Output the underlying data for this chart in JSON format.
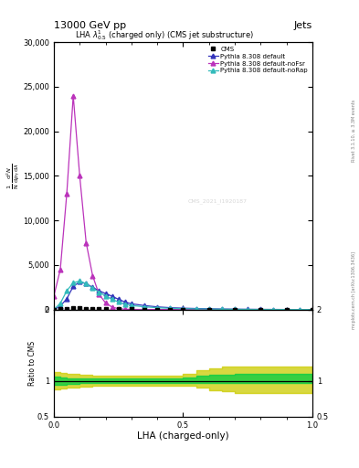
{
  "title": "13000 GeV pp",
  "title_right": "Jets",
  "plot_title": "LHA $\\lambda^{1}_{0.5}$ (charged only) (CMS jet substructure)",
  "xlabel": "LHA (charged-only)",
  "ylabel_ratio": "Ratio to CMS",
  "watermark": "CMS_2021_I1920187",
  "right_label": "mcplots.cern.ch [arXiv:1306.3436]",
  "rivet_label": "Rivet 3.1.10, ≥ 3.3M events",
  "xlim": [
    0,
    1
  ],
  "main_ylim": [
    0,
    30000
  ],
  "ratio_ylim": [
    0.5,
    2.0
  ],
  "cms_x": [
    0.0,
    0.025,
    0.05,
    0.075,
    0.1,
    0.125,
    0.15,
    0.175,
    0.2,
    0.25,
    0.3,
    0.35,
    0.4,
    0.45,
    0.5,
    0.6,
    0.7,
    0.8,
    0.9,
    1.0
  ],
  "cms_y": [
    0,
    50,
    100,
    150,
    120,
    90,
    70,
    55,
    45,
    30,
    20,
    14,
    10,
    7,
    5,
    3,
    2,
    1,
    0,
    0
  ],
  "pythia_default_x": [
    0.0,
    0.025,
    0.05,
    0.075,
    0.1,
    0.125,
    0.15,
    0.175,
    0.2,
    0.225,
    0.25,
    0.275,
    0.3,
    0.35,
    0.4,
    0.45,
    0.5,
    0.55,
    0.6,
    0.65,
    0.7,
    0.75,
    0.8,
    0.85,
    0.9,
    0.95,
    1.0
  ],
  "pythia_default_y": [
    0,
    400,
    1200,
    2600,
    3100,
    2900,
    2500,
    2100,
    1800,
    1500,
    1150,
    850,
    650,
    450,
    300,
    210,
    155,
    115,
    85,
    60,
    42,
    28,
    18,
    11,
    6,
    2,
    0
  ],
  "pythia_nofsr_x": [
    0.0,
    0.025,
    0.05,
    0.075,
    0.1,
    0.125,
    0.15,
    0.175,
    0.2,
    0.225,
    0.25,
    0.275,
    0.3,
    0.35,
    0.4,
    0.45,
    0.5,
    0.6,
    0.7,
    0.8,
    0.9,
    1.0
  ],
  "pythia_nofsr_y": [
    1500,
    4500,
    13000,
    24000,
    15000,
    7500,
    3800,
    1700,
    750,
    280,
    95,
    40,
    18,
    8,
    4,
    2,
    1,
    0,
    0,
    0,
    0,
    0
  ],
  "pythia_norap_x": [
    0.0,
    0.025,
    0.05,
    0.075,
    0.1,
    0.125,
    0.15,
    0.175,
    0.2,
    0.225,
    0.25,
    0.275,
    0.3,
    0.35,
    0.4,
    0.45,
    0.5,
    0.55,
    0.6,
    0.65,
    0.7,
    0.75,
    0.8,
    0.85,
    0.9,
    0.95,
    1.0
  ],
  "pythia_norap_y": [
    0,
    700,
    2100,
    3000,
    3200,
    2900,
    2400,
    1950,
    1550,
    1150,
    850,
    620,
    455,
    310,
    205,
    140,
    98,
    70,
    50,
    34,
    22,
    14,
    8,
    4,
    2,
    0,
    0
  ],
  "ratio_x": [
    0.0,
    0.025,
    0.05,
    0.1,
    0.15,
    0.2,
    0.25,
    0.3,
    0.35,
    0.4,
    0.45,
    0.5,
    0.55,
    0.6,
    0.65,
    0.7,
    0.75,
    0.8,
    0.9,
    1.0
  ],
  "ratio_green_lo": [
    0.94,
    0.95,
    0.96,
    0.97,
    0.97,
    0.97,
    0.97,
    0.97,
    0.97,
    0.97,
    0.97,
    0.97,
    0.97,
    0.97,
    0.97,
    0.97,
    0.97,
    0.97,
    0.97,
    0.97
  ],
  "ratio_green_hi": [
    1.06,
    1.05,
    1.04,
    1.03,
    1.03,
    1.03,
    1.03,
    1.03,
    1.03,
    1.03,
    1.03,
    1.05,
    1.07,
    1.08,
    1.09,
    1.1,
    1.1,
    1.1,
    1.1,
    1.1
  ],
  "ratio_yellow_lo": [
    0.88,
    0.89,
    0.9,
    0.92,
    0.93,
    0.93,
    0.93,
    0.93,
    0.93,
    0.93,
    0.93,
    0.93,
    0.9,
    0.87,
    0.85,
    0.83,
    0.83,
    0.83,
    0.83,
    0.83
  ],
  "ratio_yellow_hi": [
    1.12,
    1.11,
    1.1,
    1.08,
    1.07,
    1.07,
    1.07,
    1.07,
    1.07,
    1.07,
    1.07,
    1.1,
    1.15,
    1.18,
    1.2,
    1.2,
    1.2,
    1.2,
    1.2,
    1.2
  ],
  "color_cms": "#000000",
  "color_default": "#3333bb",
  "color_nofsr": "#bb33bb",
  "color_norap": "#33bbbb",
  "color_green": "#00cc44",
  "color_yellow": "#cccc00",
  "legend_labels": [
    "CMS",
    "Pythia 8.308 default",
    "Pythia 8.308 default-noFsr",
    "Pythia 8.308 default-noRap"
  ],
  "main_yticks": [
    0,
    5000,
    10000,
    15000,
    20000,
    25000,
    30000
  ]
}
